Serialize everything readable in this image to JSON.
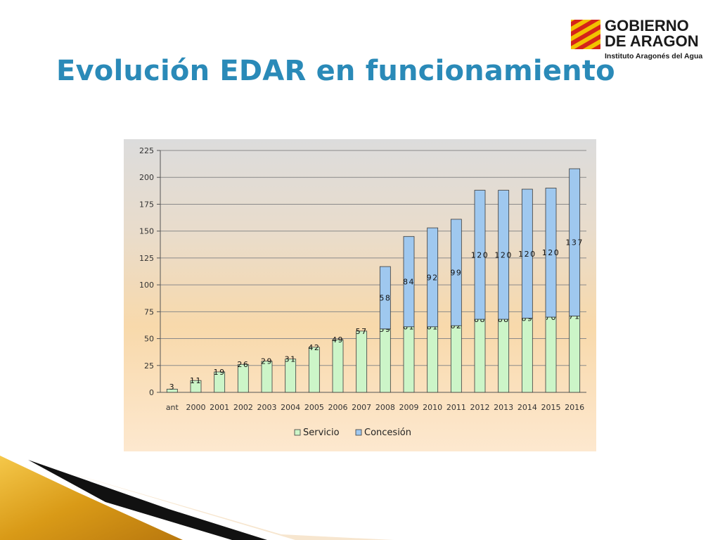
{
  "slide": {
    "title": "Evolución EDAR en funcionamiento"
  },
  "logo": {
    "line1": "GOBIERNO",
    "line2": "DE ARAGON",
    "line3": "Instituto Aragonés del Agua"
  },
  "colors": {
    "title": "#2a8ab8",
    "servicio": "#ccf5c8",
    "concesion": "#9fc8ef",
    "bar_stroke": "#3a3a3a",
    "deco_gold": "#e3a823",
    "deco_black": "#111111"
  },
  "chart_data": {
    "type": "bar",
    "stacked": true,
    "categories": [
      "ant",
      "2000",
      "2001",
      "2002",
      "2003",
      "2004",
      "2005",
      "2006",
      "2007",
      "2008",
      "2009",
      "2010",
      "2011",
      "2012",
      "2013",
      "2014",
      "2015",
      "2016"
    ],
    "series": [
      {
        "name": "Servicio",
        "color": "#ccf5c8",
        "values": [
          3,
          11,
          19,
          26,
          29,
          31,
          42,
          49,
          57,
          59,
          61,
          61,
          62,
          68,
          68,
          69,
          70,
          71
        ]
      },
      {
        "name": "Concesión",
        "color": "#9fc8ef",
        "values": [
          0,
          0,
          0,
          0,
          0,
          0,
          0,
          0,
          0,
          58,
          84,
          92,
          99,
          120,
          120,
          120,
          120,
          137
        ]
      }
    ],
    "title": "",
    "xlabel": "",
    "ylabel": "",
    "ylim": [
      0,
      225
    ],
    "yticks": [
      0,
      25,
      50,
      75,
      100,
      125,
      150,
      175,
      200,
      225
    ],
    "grid": true,
    "legend": "bottom",
    "data_labels": true
  }
}
